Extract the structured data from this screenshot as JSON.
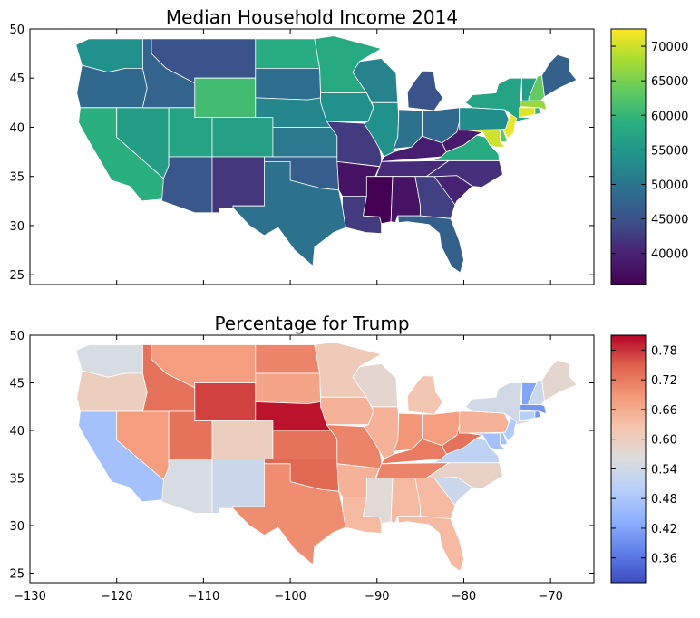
{
  "chart_data": [
    {
      "type": "choropleth",
      "title": "Median Household Income 2014",
      "xlim": [
        -130,
        -65
      ],
      "ylim": [
        24,
        50
      ],
      "x_ticks": [
        -130,
        -120,
        -110,
        -100,
        -90,
        -80,
        -70
      ],
      "y_ticks": [
        25,
        30,
        35,
        40,
        45,
        50
      ],
      "x_tick_labels_visible": false,
      "colormap": "viridis",
      "colorbar": {
        "min": 35500,
        "max": 72500,
        "ticks": [
          40000,
          45000,
          50000,
          55000,
          60000,
          65000,
          70000
        ]
      },
      "states": [
        {
          "state": "WA",
          "value": 54000
        },
        {
          "state": "OR",
          "value": 48000
        },
        {
          "state": "CA",
          "value": 59000
        },
        {
          "state": "NV",
          "value": 56000
        },
        {
          "state": "ID",
          "value": 47500
        },
        {
          "state": "MT",
          "value": 45000
        },
        {
          "state": "WY",
          "value": 61000
        },
        {
          "state": "UT",
          "value": 57000
        },
        {
          "state": "AZ",
          "value": 45500
        },
        {
          "state": "CO",
          "value": 56500
        },
        {
          "state": "NM",
          "value": 42000
        },
        {
          "state": "ND",
          "value": 58500
        },
        {
          "state": "SD",
          "value": 49000
        },
        {
          "state": "NE",
          "value": 52500
        },
        {
          "state": "KS",
          "value": 50500
        },
        {
          "state": "OK",
          "value": 46500
        },
        {
          "state": "TX",
          "value": 49500
        },
        {
          "state": "MN",
          "value": 58000
        },
        {
          "state": "IA",
          "value": 54000
        },
        {
          "state": "MO",
          "value": 42500
        },
        {
          "state": "AR",
          "value": 38000
        },
        {
          "state": "LA",
          "value": 42500
        },
        {
          "state": "WI",
          "value": 52000
        },
        {
          "state": "IL",
          "value": 54000
        },
        {
          "state": "MI",
          "value": 45000
        },
        {
          "state": "IN",
          "value": 49500
        },
        {
          "state": "OH",
          "value": 48000
        },
        {
          "state": "KY",
          "value": 39500
        },
        {
          "state": "TN",
          "value": 41000
        },
        {
          "state": "MS",
          "value": 35500
        },
        {
          "state": "AL",
          "value": 38000
        },
        {
          "state": "GA",
          "value": 43000
        },
        {
          "state": "FL",
          "value": 47000
        },
        {
          "state": "SC",
          "value": 40000
        },
        {
          "state": "NC",
          "value": 41500
        },
        {
          "state": "VA",
          "value": 58000
        },
        {
          "state": "WV",
          "value": 39000
        },
        {
          "state": "PA",
          "value": 53500
        },
        {
          "state": "NY",
          "value": 57000
        },
        {
          "state": "MD",
          "value": 70000
        },
        {
          "state": "DE",
          "value": 63000
        },
        {
          "state": "NJ",
          "value": 71500
        },
        {
          "state": "CT",
          "value": 71000
        },
        {
          "state": "RI",
          "value": 60000
        },
        {
          "state": "MA",
          "value": 67000
        },
        {
          "state": "VT",
          "value": 56000
        },
        {
          "state": "NH",
          "value": 63500
        },
        {
          "state": "ME",
          "value": 47000
        }
      ]
    },
    {
      "type": "choropleth",
      "title": "Percentage for Trump",
      "xlim": [
        -130,
        -65
      ],
      "ylim": [
        24,
        50
      ],
      "x_ticks": [
        -130,
        -120,
        -110,
        -100,
        -90,
        -80,
        -70
      ],
      "y_ticks": [
        25,
        30,
        35,
        40,
        45,
        50
      ],
      "colormap": "coolwarm",
      "colorbar": {
        "min": 0.31,
        "max": 0.81,
        "ticks": [
          0.36,
          0.42,
          0.48,
          0.54,
          0.6,
          0.66,
          0.72,
          0.78
        ]
      },
      "states": [
        {
          "state": "WA",
          "value": 0.55
        },
        {
          "state": "OR",
          "value": 0.6
        },
        {
          "state": "CA",
          "value": 0.47
        },
        {
          "state": "NV",
          "value": 0.68
        },
        {
          "state": "ID",
          "value": 0.73
        },
        {
          "state": "MT",
          "value": 0.68
        },
        {
          "state": "WY",
          "value": 0.77
        },
        {
          "state": "UT",
          "value": 0.73
        },
        {
          "state": "AZ",
          "value": 0.55
        },
        {
          "state": "CO",
          "value": 0.6
        },
        {
          "state": "NM",
          "value": 0.53
        },
        {
          "state": "ND",
          "value": 0.71
        },
        {
          "state": "SD",
          "value": 0.67
        },
        {
          "state": "NE",
          "value": 0.8
        },
        {
          "state": "KS",
          "value": 0.73
        },
        {
          "state": "OK",
          "value": 0.74
        },
        {
          "state": "TX",
          "value": 0.7
        },
        {
          "state": "MN",
          "value": 0.61
        },
        {
          "state": "IA",
          "value": 0.65
        },
        {
          "state": "MO",
          "value": 0.71
        },
        {
          "state": "AR",
          "value": 0.65
        },
        {
          "state": "LA",
          "value": 0.64
        },
        {
          "state": "WI",
          "value": 0.58
        },
        {
          "state": "IL",
          "value": 0.65
        },
        {
          "state": "MI",
          "value": 0.62
        },
        {
          "state": "IN",
          "value": 0.69
        },
        {
          "state": "OH",
          "value": 0.68
        },
        {
          "state": "KY",
          "value": 0.72
        },
        {
          "state": "TN",
          "value": 0.71
        },
        {
          "state": "MS",
          "value": 0.57
        },
        {
          "state": "AL",
          "value": 0.64
        },
        {
          "state": "GA",
          "value": 0.64
        },
        {
          "state": "FL",
          "value": 0.64
        },
        {
          "state": "SC",
          "value": 0.53
        },
        {
          "state": "NC",
          "value": 0.59
        },
        {
          "state": "VA",
          "value": 0.51
        },
        {
          "state": "WV",
          "value": 0.73
        },
        {
          "state": "PA",
          "value": 0.65
        },
        {
          "state": "NY",
          "value": 0.54
        },
        {
          "state": "MD",
          "value": 0.47
        },
        {
          "state": "DE",
          "value": 0.47
        },
        {
          "state": "NJ",
          "value": 0.49
        },
        {
          "state": "CT",
          "value": 0.5
        },
        {
          "state": "RI",
          "value": 0.4
        },
        {
          "state": "MA",
          "value": 0.4
        },
        {
          "state": "VT",
          "value": 0.42
        },
        {
          "state": "NH",
          "value": 0.53
        },
        {
          "state": "ME",
          "value": 0.58
        }
      ]
    }
  ]
}
